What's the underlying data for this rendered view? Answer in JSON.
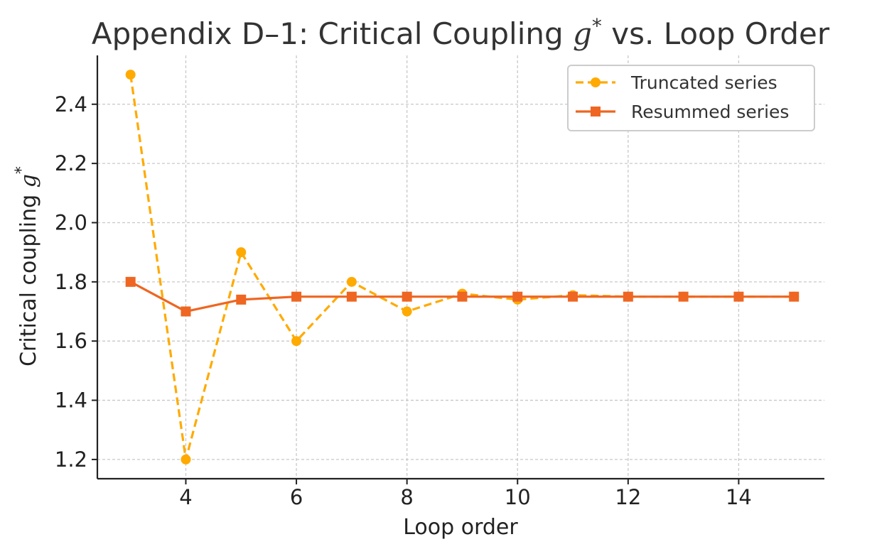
{
  "chart_data": {
    "type": "line",
    "title": "Appendix D–1: Critical Coupling g* vs. Loop Order",
    "title_parts": {
      "prefix": "Appendix D–1: Critical Coupling ",
      "symbol": "g",
      "superscript": "*",
      "suffix": " vs. Loop Order"
    },
    "xlabel": "Loop order",
    "ylabel": "Critical coupling g*",
    "ylabel_parts": {
      "prefix": "Critical coupling ",
      "symbol": "g",
      "superscript": "*"
    },
    "x": [
      3,
      4,
      5,
      6,
      7,
      8,
      9,
      10,
      11,
      12,
      13,
      14,
      15
    ],
    "xlim": [
      2.4,
      15.55
    ],
    "ylim": [
      1.135,
      2.565
    ],
    "xticks": [
      4,
      6,
      8,
      10,
      12,
      14
    ],
    "yticks": [
      1.2,
      1.4,
      1.6,
      1.8,
      2.0,
      2.2,
      2.4
    ],
    "grid": true,
    "legend_position": "top-right",
    "series": [
      {
        "name": "Truncated series",
        "color": "#FFAA00",
        "line_style": "dashed",
        "marker": "circle",
        "values": [
          2.5,
          1.2,
          1.9,
          1.6,
          1.8,
          1.7,
          1.76,
          1.74,
          1.755,
          1.75,
          1.75,
          1.75,
          1.75
        ]
      },
      {
        "name": "Resummed series",
        "color": "#EE6622",
        "line_style": "solid",
        "marker": "square",
        "values": [
          1.8,
          1.7,
          1.74,
          1.75,
          1.75,
          1.75,
          1.75,
          1.75,
          1.75,
          1.75,
          1.75,
          1.75,
          1.75
        ]
      }
    ]
  }
}
